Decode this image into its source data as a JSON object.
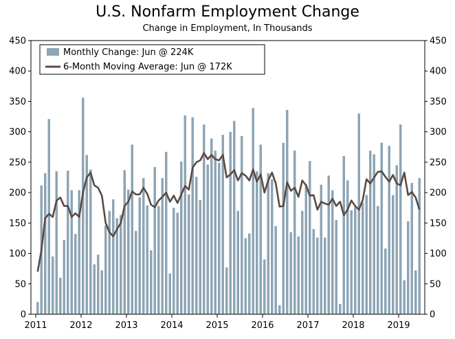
{
  "chart_data": {
    "type": "bar",
    "title": "U.S. Nonfarm Employment Change",
    "subtitle": "Change in Employment, In Thousands",
    "xlabel": "",
    "ylabel": "",
    "ylim": [
      0,
      450
    ],
    "yticks": [
      0,
      50,
      100,
      150,
      200,
      250,
      300,
      350,
      400,
      450
    ],
    "xticks": [
      "2011",
      "2012",
      "2013",
      "2014",
      "2015",
      "2016",
      "2017",
      "2018",
      "2019"
    ],
    "start": "2011-01",
    "series": [
      {
        "name": "Monthly Change",
        "legend": "Monthly Change: Jun @ 224K",
        "type": "bar",
        "color": "#8da5b5",
        "values": [
          20,
          212,
          232,
          321,
          95,
          235,
          60,
          122,
          236,
          204,
          132,
          204,
          356,
          262,
          238,
          82,
          98,
          72,
          146,
          170,
          189,
          158,
          163,
          237,
          205,
          279,
          137,
          192,
          224,
          179,
          105,
          242,
          178,
          224,
          267,
          67,
          175,
          167,
          251,
          327,
          197,
          324,
          226,
          188,
          312,
          246,
          289,
          269,
          249,
          295,
          77,
          300,
          318,
          170,
          293,
          125,
          133,
          339,
          235,
          279,
          90,
          232,
          222,
          145,
          15,
          282,
          336,
          135,
          269,
          128,
          170,
          214,
          252,
          140,
          126,
          213,
          126,
          228,
          204,
          155,
          17,
          260,
          220,
          171,
          176,
          330,
          184,
          196,
          269,
          263,
          178,
          282,
          108,
          277,
          196,
          245,
          312,
          56,
          153,
          216,
          72,
          224
        ]
      },
      {
        "name": "6-Month Moving Average",
        "legend": "6-Month Moving Average: Jun @ 172K",
        "type": "line",
        "color": "#5a4a42",
        "values": [
          70,
          105,
          158,
          165,
          160,
          187,
          192,
          178,
          178,
          160,
          166,
          160,
          200,
          225,
          233,
          212,
          208,
          195,
          150,
          135,
          128,
          140,
          150,
          178,
          185,
          202,
          197,
          197,
          208,
          198,
          180,
          176,
          187,
          193,
          200,
          185,
          195,
          183,
          197,
          211,
          205,
          241,
          250,
          253,
          265,
          255,
          262,
          255,
          253,
          262,
          225,
          230,
          237,
          220,
          232,
          228,
          220,
          238,
          218,
          230,
          200,
          220,
          233,
          215,
          177,
          178,
          217,
          203,
          208,
          193,
          220,
          212,
          195,
          196,
          172,
          185,
          182,
          180,
          190,
          178,
          185,
          163,
          172,
          187,
          178,
          172,
          188,
          222,
          215,
          225,
          234,
          235,
          226,
          218,
          229,
          215,
          212,
          233,
          196,
          201,
          192,
          172
        ]
      }
    ]
  }
}
